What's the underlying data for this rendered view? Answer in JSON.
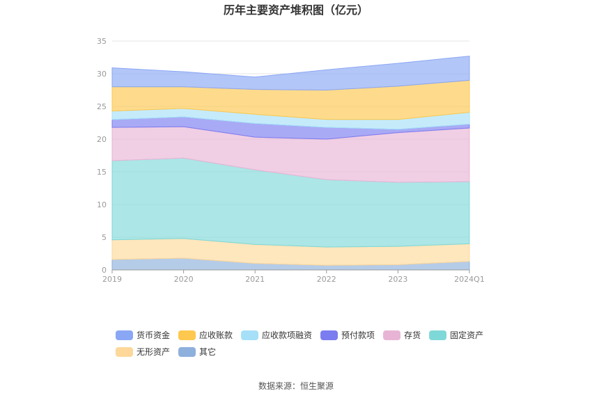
{
  "chart_data": {
    "type": "area",
    "stacked": true,
    "title": "历年主要资产堆积图（亿元）",
    "categories": [
      "2019",
      "2020",
      "2021",
      "2022",
      "2023",
      "2024Q1"
    ],
    "ylim": [
      0,
      35
    ],
    "yticks": [
      0,
      5,
      10,
      15,
      20,
      25,
      30,
      35
    ],
    "grid": "horizontal",
    "legend_position": "bottom",
    "series": [
      {
        "name": "其它",
        "color": "#8eb0dc",
        "values": [
          1.6,
          1.8,
          1.0,
          0.7,
          0.8,
          1.3
        ]
      },
      {
        "name": "无形资产",
        "color": "#fdd89a",
        "values": [
          3.0,
          3.0,
          2.9,
          2.8,
          2.8,
          2.7
        ]
      },
      {
        "name": "固定资产",
        "color": "#7fd8d8",
        "values": [
          12.1,
          12.3,
          11.4,
          10.3,
          9.8,
          9.5
        ]
      },
      {
        "name": "存货",
        "color": "#e8b4d6",
        "values": [
          5.1,
          4.8,
          5.0,
          6.2,
          7.6,
          8.2
        ]
      },
      {
        "name": "预付款项",
        "color": "#7b7cf0",
        "values": [
          1.2,
          1.5,
          2.1,
          1.8,
          0.5,
          0.6
        ]
      },
      {
        "name": "应收款项融资",
        "color": "#a6e0f8",
        "values": [
          1.3,
          1.3,
          1.4,
          1.2,
          1.5,
          1.8
        ]
      },
      {
        "name": "应收账款",
        "color": "#fec84e",
        "values": [
          3.7,
          3.3,
          3.8,
          4.5,
          5.1,
          4.9
        ]
      },
      {
        "name": "货币资金",
        "color": "#8aa7f5",
        "values": [
          2.9,
          2.3,
          1.9,
          3.1,
          3.5,
          3.7
        ]
      }
    ],
    "legend_order": [
      "货币资金",
      "应收账款",
      "应收款项融资",
      "预付款项",
      "存货",
      "固定资产",
      "无形资产",
      "其它"
    ]
  },
  "footer": {
    "source": "数据来源：恒生聚源"
  }
}
